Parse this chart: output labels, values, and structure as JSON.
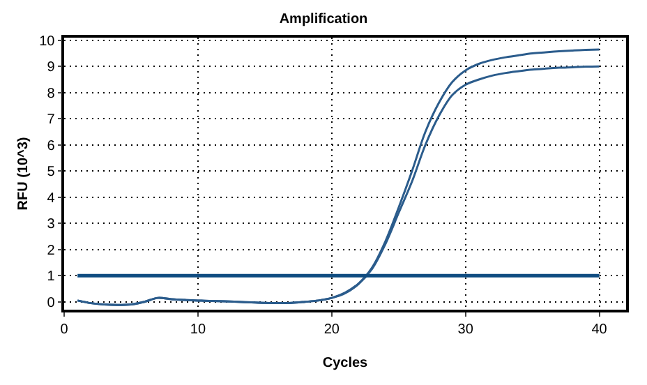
{
  "chart_data": {
    "type": "line",
    "title": "Amplification",
    "xlabel": "Cycles",
    "ylabel": "RFU (10^3)",
    "x": [
      1,
      2,
      3,
      4,
      5,
      6,
      7,
      8,
      9,
      10,
      11,
      12,
      13,
      14,
      15,
      16,
      17,
      18,
      19,
      20,
      21,
      22,
      23,
      24,
      25,
      26,
      27,
      28,
      29,
      30,
      31,
      32,
      33,
      34,
      35,
      36,
      37,
      38,
      39,
      40
    ],
    "series": [
      {
        "color": "#2b5c8c",
        "values": [
          0.05,
          -0.05,
          -0.1,
          -0.12,
          -0.1,
          0.0,
          0.15,
          0.1,
          0.07,
          0.05,
          0.03,
          0.02,
          0.0,
          -0.02,
          -0.04,
          -0.05,
          -0.04,
          0.0,
          0.05,
          0.15,
          0.35,
          0.7,
          1.3,
          2.3,
          3.6,
          5.0,
          6.5,
          7.6,
          8.4,
          8.85,
          9.1,
          9.25,
          9.35,
          9.43,
          9.5,
          9.54,
          9.58,
          9.61,
          9.63,
          9.65
        ]
      },
      {
        "color": "#2b5c8c",
        "values": [
          0.05,
          -0.05,
          -0.1,
          -0.12,
          -0.1,
          0.0,
          0.15,
          0.1,
          0.07,
          0.05,
          0.03,
          0.02,
          0.0,
          -0.02,
          -0.04,
          -0.05,
          -0.04,
          0.0,
          0.05,
          0.15,
          0.33,
          0.68,
          1.25,
          2.2,
          3.4,
          4.6,
          6.0,
          7.1,
          7.9,
          8.3,
          8.5,
          8.65,
          8.75,
          8.82,
          8.88,
          8.92,
          8.95,
          8.97,
          8.99,
          9.0
        ]
      }
    ],
    "ref_lines": [
      {
        "axis": "y",
        "value": 1,
        "color": "#0f4c81"
      }
    ],
    "xlim": [
      0,
      42
    ],
    "xticks": [
      0,
      10,
      20,
      30,
      40
    ],
    "ylim": [
      -0.3,
      10.1
    ],
    "yticks": [
      0,
      1,
      2,
      3,
      4,
      5,
      6,
      7,
      8,
      9,
      10
    ],
    "grid": true,
    "marker": "none",
    "line_style": "solid"
  }
}
